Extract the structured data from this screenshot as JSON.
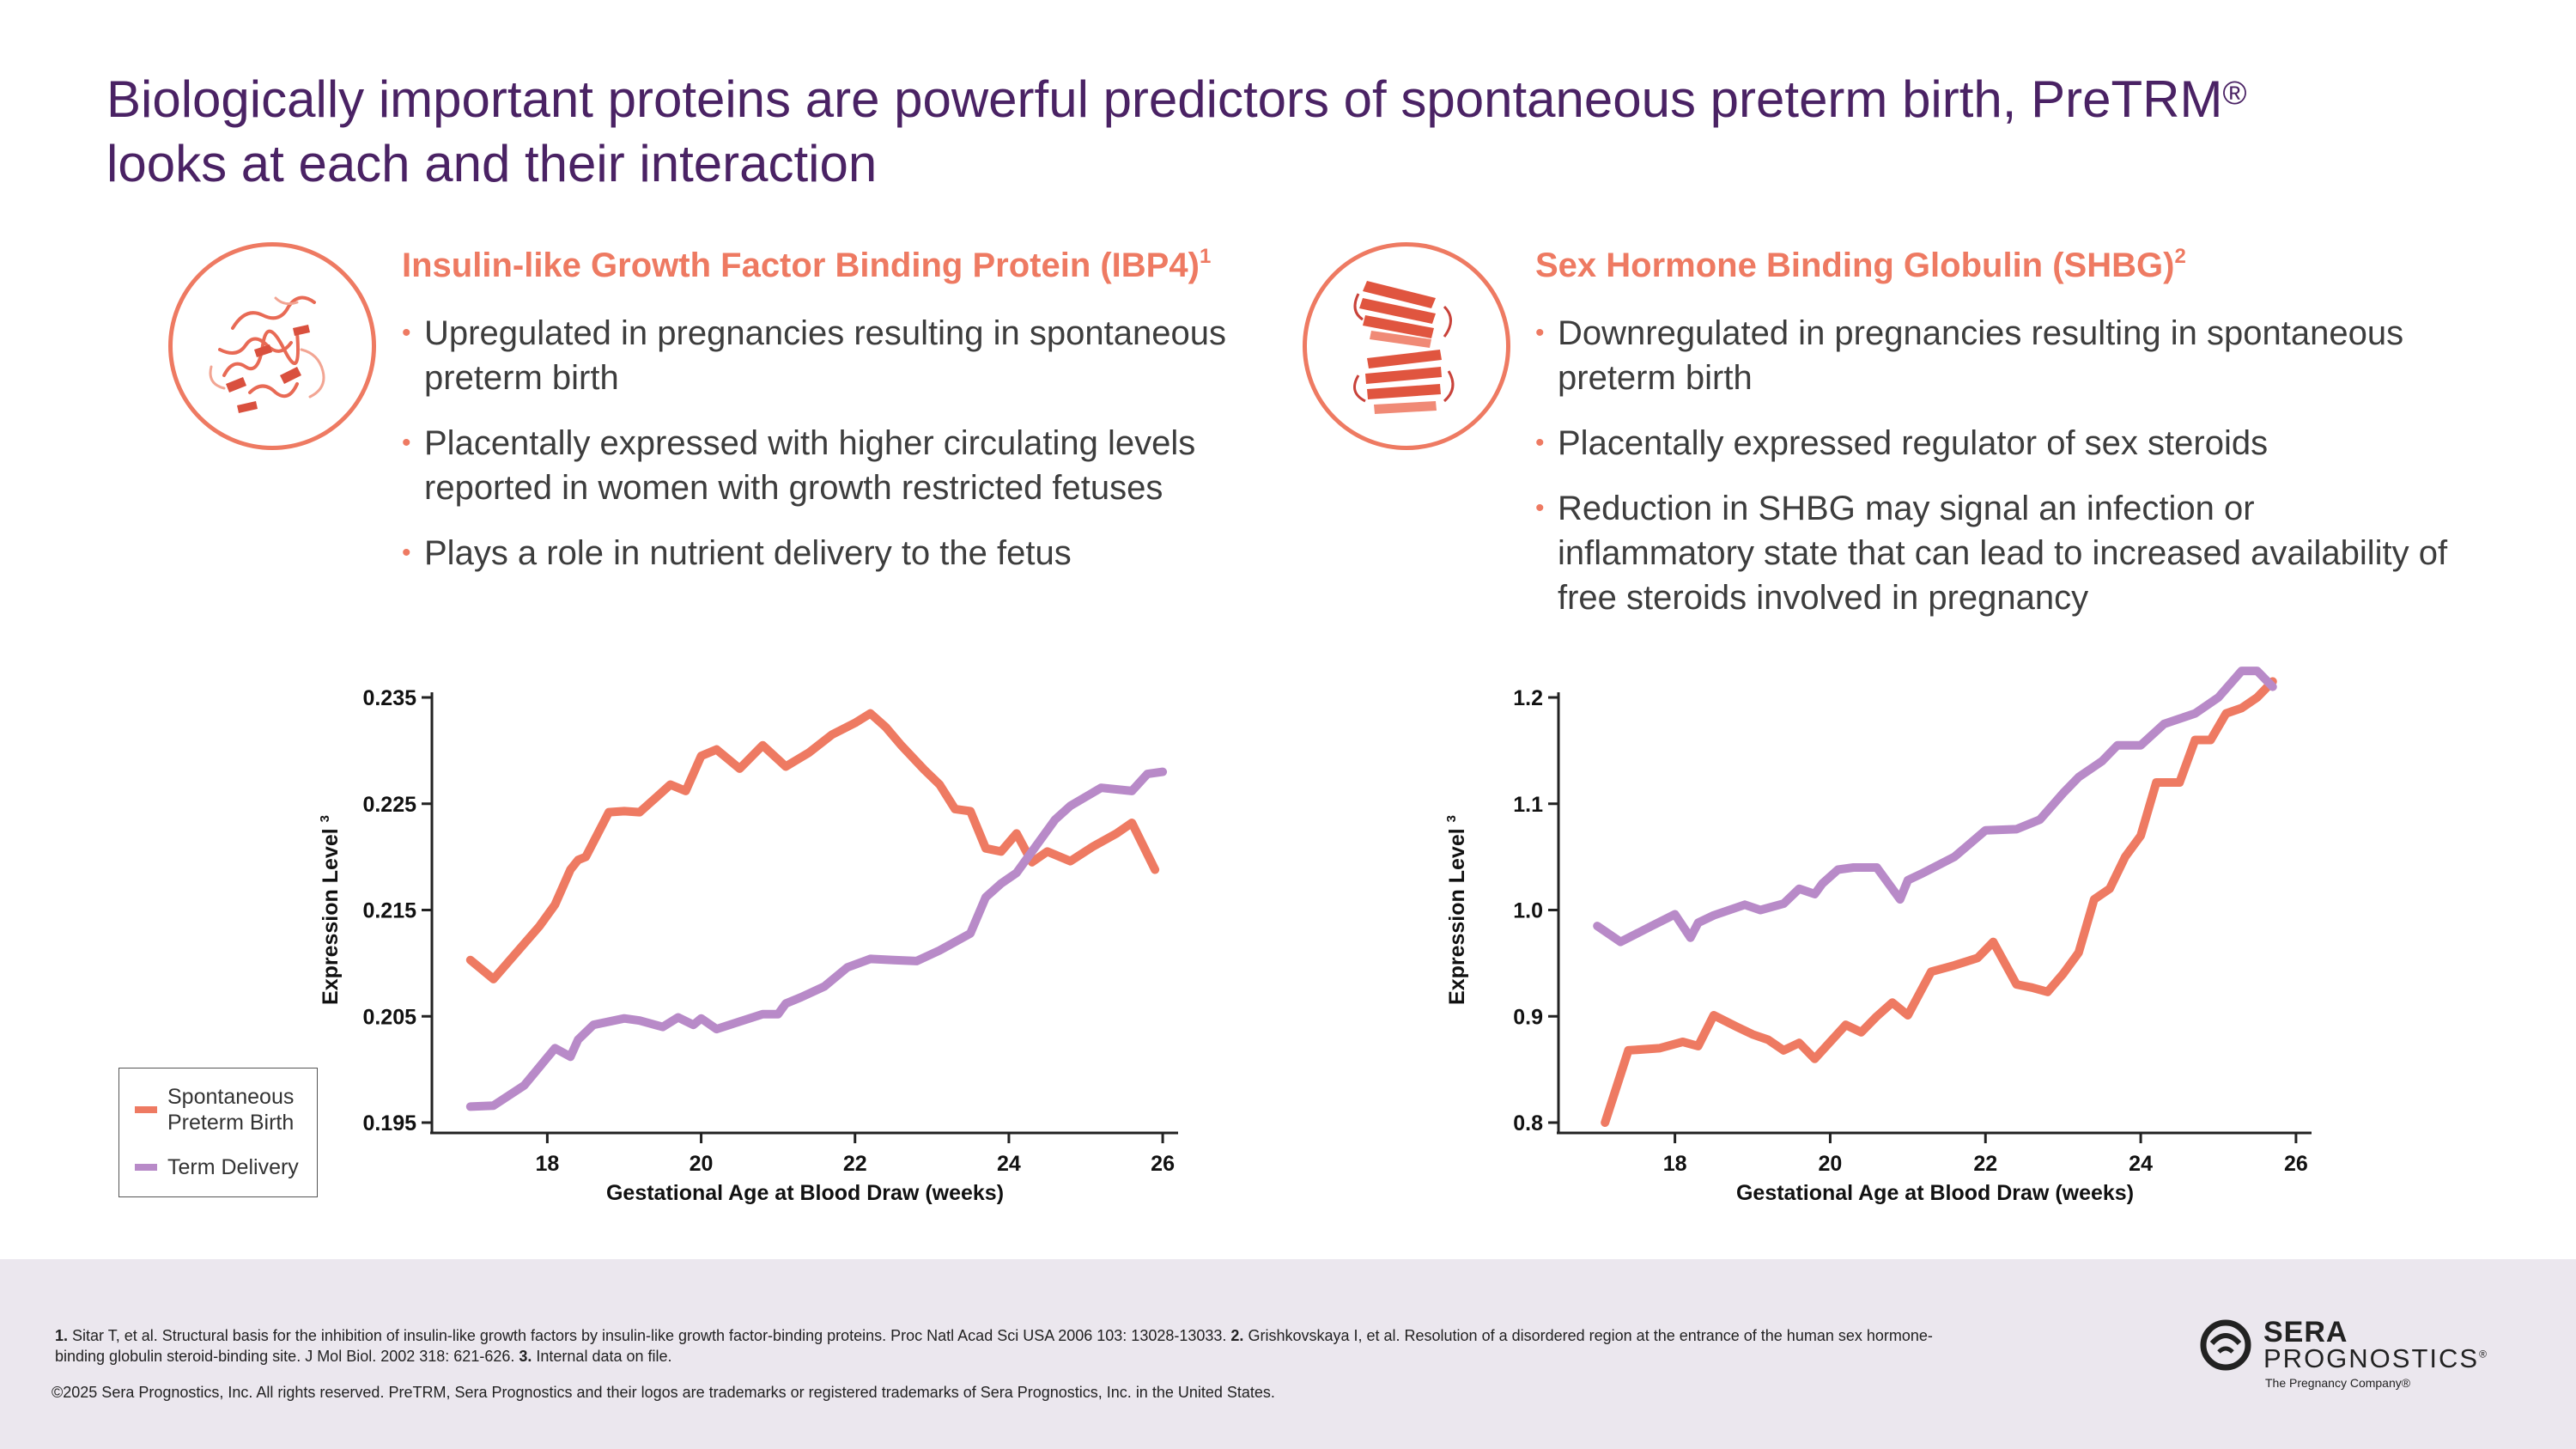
{
  "slide": {
    "title": "Biologically important proteins are powerful predictors of spontaneous preterm birth, PreTRM",
    "title_reg": "®",
    "title_line2": "looks at each and their interaction"
  },
  "left": {
    "heading": "Insulin-like Growth Factor Binding Protein (IBP4)",
    "heading_sup": "1",
    "icon": "ibp4-protein-structure",
    "bullets": [
      "Upregulated in pregnancies resulting in spontaneous preterm birth",
      "Placentally expressed with higher circulating levels reported in women with growth restricted fetuses",
      "Plays a role in nutrient delivery to the fetus"
    ]
  },
  "right": {
    "heading": "Sex Hormone Binding Globulin (SHBG)",
    "heading_sup": "2",
    "icon": "shbg-protein-structure",
    "bullets": [
      "Downregulated in pregnancies resulting in spontaneous preterm birth",
      "Placentally expressed regulator of sex steroids",
      "Reduction in SHBG may signal an infection or inflammatory state that can lead to increased availability of free steroids involved in pregnancy"
    ]
  },
  "legend": {
    "items": [
      {
        "label_line1": "Spontaneous",
        "label_line2": "Preterm Birth",
        "color": "#ee7a62"
      },
      {
        "label_line1": "Term Delivery",
        "label_line2": "",
        "color": "#b88ac8"
      }
    ]
  },
  "colors": {
    "sptb": "#ee7a62",
    "term": "#b88ac8",
    "title": "#4a2264"
  },
  "chart_data": [
    {
      "type": "line",
      "xlabel": "Gestational Age at Blood Draw (weeks)",
      "ylabel": "Expression Level",
      "ylabel_sup": "3",
      "xlim": [
        16.5,
        26.2
      ],
      "ylim": [
        0.195,
        0.235
      ],
      "xticks": [
        18,
        20,
        22,
        24,
        26
      ],
      "yticks": [
        0.195,
        0.205,
        0.215,
        0.225,
        0.235
      ],
      "ytick_labels": [
        "0.195",
        "0.205",
        "0.215",
        "0.225",
        "0.235"
      ],
      "series": [
        {
          "name": "Spontaneous Preterm Birth",
          "x": [
            17.0,
            17.3,
            17.6,
            17.9,
            18.1,
            18.3,
            18.4,
            18.5,
            18.8,
            19.0,
            19.2,
            19.4,
            19.6,
            19.8,
            20.0,
            20.2,
            20.5,
            20.8,
            21.1,
            21.4,
            21.7,
            22.0,
            22.2,
            22.4,
            22.6,
            22.9,
            23.1,
            23.3,
            23.5,
            23.7,
            23.9,
            24.1,
            24.3,
            24.5,
            24.8,
            25.1,
            25.4,
            25.6,
            25.9
          ],
          "y": [
            0.2103,
            0.2085,
            0.211,
            0.2135,
            0.2155,
            0.2188,
            0.2197,
            0.22,
            0.2242,
            0.2243,
            0.2242,
            0.2255,
            0.2268,
            0.2262,
            0.2295,
            0.2301,
            0.2283,
            0.2305,
            0.2285,
            0.2298,
            0.2315,
            0.2326,
            0.2335,
            0.2322,
            0.2305,
            0.2282,
            0.2268,
            0.2245,
            0.2243,
            0.2208,
            0.2205,
            0.2222,
            0.2195,
            0.2205,
            0.2196,
            0.221,
            0.2222,
            0.2232,
            0.2188
          ]
        },
        {
          "name": "Term Delivery",
          "x": [
            17.0,
            17.3,
            17.7,
            18.1,
            18.3,
            18.4,
            18.6,
            19.0,
            19.2,
            19.5,
            19.7,
            19.9,
            20.0,
            20.2,
            20.5,
            20.8,
            21.0,
            21.1,
            21.3,
            21.6,
            21.9,
            22.2,
            22.5,
            22.8,
            23.1,
            23.5,
            23.7,
            23.9,
            24.1,
            24.3,
            24.6,
            24.8,
            25.2,
            25.6,
            25.8,
            26.0
          ],
          "y": [
            0.1965,
            0.1966,
            0.1985,
            0.202,
            0.2012,
            0.2028,
            0.2042,
            0.2048,
            0.2046,
            0.204,
            0.2049,
            0.2042,
            0.2048,
            0.2038,
            0.2045,
            0.2052,
            0.2052,
            0.2062,
            0.2068,
            0.2078,
            0.2096,
            0.2104,
            0.2103,
            0.2102,
            0.2112,
            0.2128,
            0.2162,
            0.2175,
            0.2185,
            0.2205,
            0.2235,
            0.2248,
            0.2265,
            0.2262,
            0.2278,
            0.228
          ]
        }
      ]
    },
    {
      "type": "line",
      "xlabel": "Gestational Age at Blood Draw (weeks)",
      "ylabel": "Expression Level",
      "ylabel_sup": "3",
      "xlim": [
        16.5,
        26.2
      ],
      "ylim": [
        0.8,
        1.2
      ],
      "xticks": [
        18,
        20,
        22,
        24,
        26
      ],
      "yticks": [
        0.8,
        0.9,
        1.0,
        1.1,
        1.2
      ],
      "ytick_labels": [
        "0.8",
        "0.9",
        "1.0",
        "1.1",
        "1.2"
      ],
      "series": [
        {
          "name": "Spontaneous Preterm Birth",
          "x": [
            17.1,
            17.4,
            17.8,
            18.1,
            18.3,
            18.5,
            18.8,
            19.0,
            19.2,
            19.4,
            19.6,
            19.8,
            20.0,
            20.2,
            20.4,
            20.6,
            20.8,
            21.0,
            21.3,
            21.6,
            21.9,
            22.1,
            22.4,
            22.6,
            22.8,
            23.0,
            23.2,
            23.4,
            23.6,
            23.8,
            24.0,
            24.2,
            24.5,
            24.7,
            24.9,
            25.1,
            25.3,
            25.5,
            25.7
          ],
          "y": [
            0.8,
            0.868,
            0.87,
            0.876,
            0.872,
            0.901,
            0.89,
            0.883,
            0.878,
            0.868,
            0.875,
            0.86,
            0.876,
            0.892,
            0.885,
            0.9,
            0.913,
            0.901,
            0.942,
            0.948,
            0.955,
            0.97,
            0.93,
            0.927,
            0.923,
            0.94,
            0.96,
            1.01,
            1.02,
            1.05,
            1.07,
            1.12,
            1.12,
            1.16,
            1.16,
            1.185,
            1.19,
            1.2,
            1.215
          ]
        },
        {
          "name": "Term Delivery",
          "x": [
            17.0,
            17.3,
            17.7,
            18.0,
            18.2,
            18.3,
            18.5,
            18.9,
            19.1,
            19.4,
            19.6,
            19.8,
            19.9,
            20.1,
            20.3,
            20.6,
            20.9,
            21.0,
            21.2,
            21.6,
            22.0,
            22.4,
            22.7,
            23.0,
            23.2,
            23.5,
            23.7,
            24.0,
            24.3,
            24.5,
            24.7,
            25.0,
            25.3,
            25.5,
            25.7
          ],
          "y": [
            0.985,
            0.97,
            0.985,
            0.996,
            0.974,
            0.988,
            0.995,
            1.005,
            1.0,
            1.006,
            1.02,
            1.015,
            1.025,
            1.038,
            1.04,
            1.04,
            1.01,
            1.028,
            1.035,
            1.05,
            1.075,
            1.076,
            1.085,
            1.11,
            1.125,
            1.14,
            1.155,
            1.155,
            1.175,
            1.18,
            1.185,
            1.2,
            1.225,
            1.225,
            1.21
          ]
        }
      ]
    }
  ],
  "footer": {
    "ref1_num": "1.",
    "ref1": "Sitar T, et al. Structural basis for the inhibition of insulin-like growth factors by insulin-like growth factor-binding proteins. Proc Natl Acad Sci USA 2006 103: 13028-13033.",
    "ref2_num": "2.",
    "ref2": "Grishkovskaya I, et al. Resolution of a disordered region at the entrance of the human sex hormone-binding globulin steroid-binding site. J Mol Biol. 2002 318: 621-626.",
    "ref3_num": "3.",
    "ref3": "Internal data on file.",
    "copyright": "©2025 Sera Prognostics, Inc. All rights reserved. PreTRM, Sera Prognostics and their logos are trademarks or registered trademarks of Sera Prognostics, Inc. in the United States."
  },
  "logo": {
    "line1": "SERA",
    "line2": "PROGNOSTICS",
    "reg": "®",
    "tagline": "The Pregnancy Company®"
  }
}
